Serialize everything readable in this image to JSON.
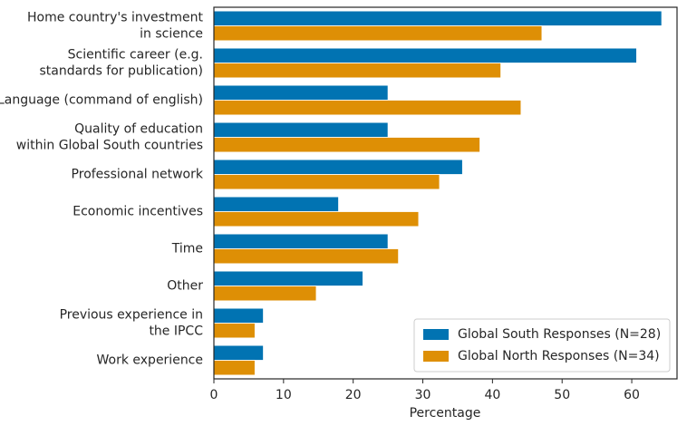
{
  "chart_data": {
    "type": "barh",
    "xlabel": "Percentage",
    "categories": [
      [
        "Home country's investment",
        "in science"
      ],
      [
        "Scientific career (e.g.",
        "standards for publication)"
      ],
      [
        "Language (command of english)"
      ],
      [
        "Quality of education",
        "within Global South countries"
      ],
      [
        "Professional network"
      ],
      [
        "Economic incentives"
      ],
      [
        "Time"
      ],
      [
        "Other"
      ],
      [
        "Previous experience in",
        "the IPCC"
      ],
      [
        "Work experience"
      ]
    ],
    "series": [
      {
        "name": "Global South Responses (N=28)",
        "color": "#0173b2",
        "values": [
          64.3,
          60.7,
          25.0,
          25.0,
          35.7,
          17.9,
          25.0,
          21.4,
          7.1,
          7.1
        ]
      },
      {
        "name": "Global North Responses (N=34)",
        "color": "#de8f05",
        "values": [
          47.1,
          41.2,
          44.1,
          38.2,
          32.4,
          29.4,
          26.5,
          14.7,
          5.9,
          5.9
        ]
      }
    ],
    "xlim": [
      0,
      66.5
    ],
    "xticks": [
      0,
      10,
      20,
      30,
      40,
      50,
      60
    ],
    "legend": "lower right",
    "grid": false
  }
}
